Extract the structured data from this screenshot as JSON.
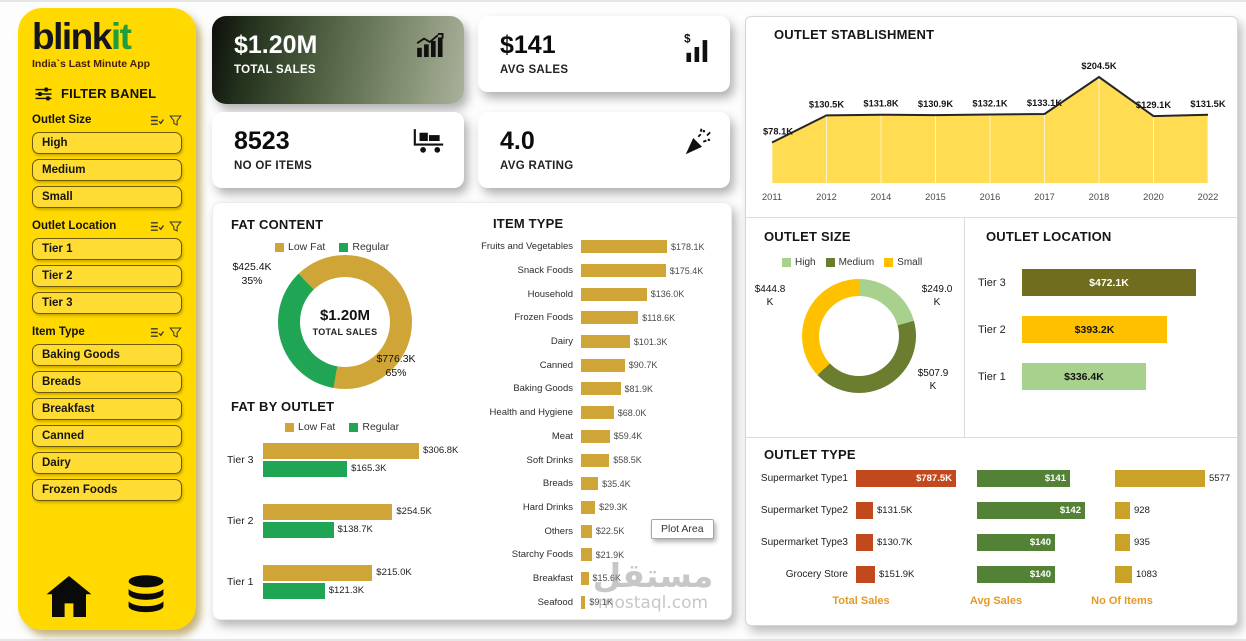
{
  "page": {
    "watermark_ar": "مستقل",
    "watermark_en": "mostaql.com"
  },
  "sidebar": {
    "logo": {
      "blink": "blink",
      "it": "it"
    },
    "tagline": "India`s Last Minute App",
    "filter_panel_label": "FILTER BANEL",
    "groups": [
      {
        "label": "Outlet Size",
        "options": [
          "High",
          "Medium",
          "Small"
        ]
      },
      {
        "label": "Outlet Location",
        "options": [
          "Tier 1",
          "Tier 2",
          "Tier 3"
        ]
      },
      {
        "label": "Item Type",
        "options": [
          "Baking Goods",
          "Breads",
          "Breakfast",
          "Canned",
          "Dairy",
          "Frozen Foods"
        ]
      }
    ]
  },
  "kpis": [
    {
      "value": "$1.20M",
      "label": "TOTAL SALES",
      "icon": "sales-growth-icon"
    },
    {
      "value": "$141",
      "label": "AVG SALES",
      "icon": "avg-sales-icon"
    },
    {
      "value": "8523",
      "label": "NO OF ITEMS",
      "icon": "cart-icon"
    },
    {
      "value": "4.0",
      "label": "AVG RATING",
      "icon": "celebration-icon"
    }
  ],
  "colors": {
    "sidebar_yellow": "#FFD900",
    "mustard": "#D0A537",
    "green": "#1FA553",
    "area_yellow": "#FFDC52",
    "size_high": "#A9D18E",
    "size_medium": "#6B7D2F",
    "size_small": "#FFC000",
    "tier3_bar": "#716D1F",
    "tier2_bar": "#FFC000",
    "tier1_bar": "#A9D18E",
    "table_orange": "#C2491D",
    "table_green": "#538135",
    "table_mustard": "#C9A227",
    "footer_orange": "#E39A28"
  },
  "chart_data": [
    {
      "id": "fat_content",
      "type": "pie",
      "title": "FAT CONTENT",
      "legend": [
        "Low Fat",
        "Regular"
      ],
      "center_value": "$1.20M",
      "center_label": "TOTAL SALES",
      "slices": [
        {
          "name": "Low Fat",
          "value_label": "$776.3K",
          "pct": 65,
          "pct_label": "65%"
        },
        {
          "name": "Regular",
          "value_label": "$425.4K",
          "pct": 35,
          "pct_label": "35%"
        }
      ]
    },
    {
      "id": "fat_by_outlet",
      "type": "bar",
      "title": "FAT BY OUTLET",
      "legend": [
        "Low Fat",
        "Regular"
      ],
      "categories": [
        "Tier 3",
        "Tier 2",
        "Tier 1"
      ],
      "series": [
        {
          "name": "Low Fat",
          "values": [
            306.8,
            254.5,
            215.0
          ],
          "labels": [
            "$306.8K",
            "$254.5K",
            "$215.0K"
          ]
        },
        {
          "name": "Regular",
          "values": [
            165.3,
            138.7,
            121.3
          ],
          "labels": [
            "$165.3K",
            "$138.7K",
            "$121.3K"
          ]
        }
      ]
    },
    {
      "id": "item_type",
      "type": "bar",
      "title": "ITEM TYPE",
      "categories": [
        "Fruits and Vegetables",
        "Snack Foods",
        "Household",
        "Frozen Foods",
        "Dairy",
        "Canned",
        "Baking Goods",
        "Health and Hygiene",
        "Meat",
        "Soft Drinks",
        "Breads",
        "Hard Drinks",
        "Others",
        "Starchy Foods",
        "Breakfast",
        "Seafood"
      ],
      "values": [
        178.1,
        175.4,
        136.0,
        118.6,
        101.3,
        90.7,
        81.9,
        68.0,
        59.4,
        58.5,
        35.4,
        29.3,
        22.5,
        21.9,
        15.6,
        9.1
      ],
      "labels": [
        "$178.1K",
        "$175.4K",
        "$136.0K",
        "$118.6K",
        "$101.3K",
        "$90.7K",
        "$81.9K",
        "$68.0K",
        "$59.4K",
        "$58.5K",
        "$35.4K",
        "$29.3K",
        "$22.5K",
        "$21.9K",
        "$15.6K",
        "$9.1K"
      ],
      "tooltip": "Plot Area"
    },
    {
      "id": "outlet_establishment",
      "type": "area",
      "title": "OUTLET STABLISHMENT",
      "x": [
        "2011",
        "2012",
        "2014",
        "2015",
        "2016",
        "2017",
        "2018",
        "2020",
        "2022"
      ],
      "values": [
        78.1,
        130.5,
        131.8,
        130.9,
        132.1,
        133.1,
        204.5,
        129.1,
        131.5
      ],
      "labels": [
        "$78.1K",
        "$130.5K",
        "$131.8K",
        "$130.9K",
        "$132.1K",
        "$133.1K",
        "$204.5K",
        "$129.1K",
        "$131.5K"
      ],
      "ylim": [
        0,
        220
      ]
    },
    {
      "id": "outlet_size",
      "type": "pie",
      "title": "OUTLET SIZE",
      "legend": [
        "High",
        "Medium",
        "Small"
      ],
      "slices": [
        {
          "name": "High",
          "value": 249.0,
          "label": "$249.0\nK"
        },
        {
          "name": "Medium",
          "value": 507.9,
          "label": "$507.9\nK"
        },
        {
          "name": "Small",
          "value": 444.8,
          "label": "$444.8\nK"
        }
      ]
    },
    {
      "id": "outlet_location",
      "type": "bar",
      "title": "OUTLET LOCATION",
      "categories": [
        "Tier 3",
        "Tier 2",
        "Tier 1"
      ],
      "values": [
        472.1,
        393.2,
        336.4
      ],
      "labels": [
        "$472.1K",
        "$393.2K",
        "$336.4K"
      ]
    },
    {
      "id": "outlet_type",
      "type": "table",
      "title": "OUTLET TYPE",
      "rows": [
        {
          "name": "Supermarket Type1",
          "total_sales": 787.5,
          "total_sales_label": "$787.5K",
          "avg_sales": 141,
          "avg_sales_label": "$141",
          "items": 5577,
          "items_label": "5577"
        },
        {
          "name": "Supermarket Type2",
          "total_sales": 131.5,
          "total_sales_label": "$131.5K",
          "avg_sales": 142,
          "avg_sales_label": "$142",
          "items": 928,
          "items_label": "928"
        },
        {
          "name": "Supermarket Type3",
          "total_sales": 130.7,
          "total_sales_label": "$130.7K",
          "avg_sales": 140,
          "avg_sales_label": "$140",
          "items": 935,
          "items_label": "935"
        },
        {
          "name": "Grocery Store",
          "total_sales": 151.9,
          "total_sales_label": "$151.9K",
          "avg_sales": 140,
          "avg_sales_label": "$140",
          "items": 1083,
          "items_label": "1083"
        }
      ],
      "footers": [
        "Total Sales",
        "Avg Sales",
        "No Of Items"
      ]
    }
  ]
}
